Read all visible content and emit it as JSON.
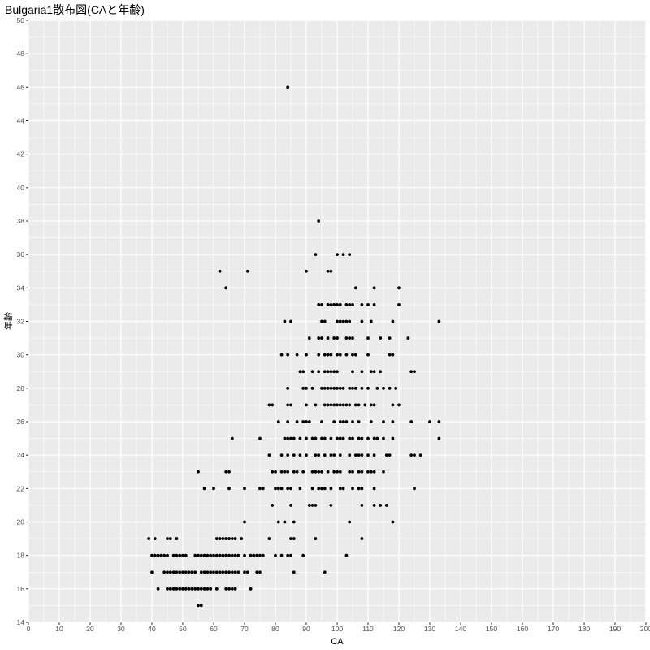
{
  "chart_data": {
    "type": "scatter",
    "title": "Bulgaria1散布図(CAと年齢)",
    "xlabel": "CA",
    "ylabel": "年齢",
    "xlim": [
      0,
      200
    ],
    "ylim": [
      14,
      50
    ],
    "xticks": [
      0,
      10,
      20,
      30,
      40,
      50,
      60,
      70,
      80,
      90,
      100,
      110,
      120,
      130,
      140,
      150,
      160,
      170,
      180,
      190,
      200
    ],
    "yticks": [
      14,
      16,
      18,
      20,
      22,
      24,
      26,
      28,
      30,
      32,
      34,
      36,
      38,
      40,
      42,
      44,
      46,
      48,
      50
    ],
    "grid": true,
    "background": "#ebebeb",
    "grid_color": "#ffffff",
    "point_color": "#000000",
    "points": [
      [
        55,
        15
      ],
      [
        56,
        15
      ],
      [
        42,
        16
      ],
      [
        45,
        16
      ],
      [
        46,
        16
      ],
      [
        47,
        16
      ],
      [
        48,
        16
      ],
      [
        49,
        16
      ],
      [
        50,
        16
      ],
      [
        51,
        16
      ],
      [
        52,
        16
      ],
      [
        53,
        16
      ],
      [
        54,
        16
      ],
      [
        55,
        16
      ],
      [
        56,
        16
      ],
      [
        57,
        16
      ],
      [
        58,
        16
      ],
      [
        59,
        16
      ],
      [
        61,
        16
      ],
      [
        64,
        16
      ],
      [
        65,
        16
      ],
      [
        66,
        16
      ],
      [
        67,
        16
      ],
      [
        72,
        16
      ],
      [
        40,
        17
      ],
      [
        44,
        17
      ],
      [
        45,
        17
      ],
      [
        46,
        17
      ],
      [
        47,
        17
      ],
      [
        48,
        17
      ],
      [
        49,
        17
      ],
      [
        50,
        17
      ],
      [
        51,
        17
      ],
      [
        52,
        17
      ],
      [
        53,
        17
      ],
      [
        54,
        17
      ],
      [
        56,
        17
      ],
      [
        57,
        17
      ],
      [
        58,
        17
      ],
      [
        59,
        17
      ],
      [
        60,
        17
      ],
      [
        61,
        17
      ],
      [
        62,
        17
      ],
      [
        63,
        17
      ],
      [
        64,
        17
      ],
      [
        65,
        17
      ],
      [
        66,
        17
      ],
      [
        67,
        17
      ],
      [
        68,
        17
      ],
      [
        70,
        17
      ],
      [
        71,
        17
      ],
      [
        74,
        17
      ],
      [
        75,
        17
      ],
      [
        86,
        17
      ],
      [
        96,
        17
      ],
      [
        40,
        18
      ],
      [
        41,
        18
      ],
      [
        42,
        18
      ],
      [
        43,
        18
      ],
      [
        44,
        18
      ],
      [
        45,
        18
      ],
      [
        47,
        18
      ],
      [
        48,
        18
      ],
      [
        49,
        18
      ],
      [
        50,
        18
      ],
      [
        51,
        18
      ],
      [
        54,
        18
      ],
      [
        55,
        18
      ],
      [
        56,
        18
      ],
      [
        57,
        18
      ],
      [
        58,
        18
      ],
      [
        59,
        18
      ],
      [
        60,
        18
      ],
      [
        61,
        18
      ],
      [
        62,
        18
      ],
      [
        63,
        18
      ],
      [
        64,
        18
      ],
      [
        65,
        18
      ],
      [
        66,
        18
      ],
      [
        67,
        18
      ],
      [
        68,
        18
      ],
      [
        70,
        18
      ],
      [
        72,
        18
      ],
      [
        73,
        18
      ],
      [
        74,
        18
      ],
      [
        75,
        18
      ],
      [
        76,
        18
      ],
      [
        80,
        18
      ],
      [
        82,
        18
      ],
      [
        84,
        18
      ],
      [
        85,
        18
      ],
      [
        89,
        18
      ],
      [
        103,
        18
      ],
      [
        39,
        19
      ],
      [
        41,
        19
      ],
      [
        45,
        19
      ],
      [
        46,
        19
      ],
      [
        48,
        19
      ],
      [
        61,
        19
      ],
      [
        62,
        19
      ],
      [
        63,
        19
      ],
      [
        64,
        19
      ],
      [
        65,
        19
      ],
      [
        66,
        19
      ],
      [
        67,
        19
      ],
      [
        69,
        19
      ],
      [
        78,
        19
      ],
      [
        85,
        19
      ],
      [
        86,
        19
      ],
      [
        93,
        19
      ],
      [
        108,
        19
      ],
      [
        70,
        20
      ],
      [
        81,
        20
      ],
      [
        83,
        20
      ],
      [
        86,
        20
      ],
      [
        104,
        20
      ],
      [
        118,
        20
      ],
      [
        79,
        21
      ],
      [
        85,
        21
      ],
      [
        91,
        21
      ],
      [
        92,
        21
      ],
      [
        93,
        21
      ],
      [
        98,
        21
      ],
      [
        108,
        21
      ],
      [
        112,
        21
      ],
      [
        114,
        21
      ],
      [
        116,
        21
      ],
      [
        57,
        22
      ],
      [
        60,
        22
      ],
      [
        65,
        22
      ],
      [
        70,
        22
      ],
      [
        75,
        22
      ],
      [
        76,
        22
      ],
      [
        80,
        22
      ],
      [
        81,
        22
      ],
      [
        82,
        22
      ],
      [
        84,
        22
      ],
      [
        85,
        22
      ],
      [
        88,
        22
      ],
      [
        92,
        22
      ],
      [
        94,
        22
      ],
      [
        95,
        22
      ],
      [
        96,
        22
      ],
      [
        98,
        22
      ],
      [
        101,
        22
      ],
      [
        102,
        22
      ],
      [
        105,
        22
      ],
      [
        107,
        22
      ],
      [
        108,
        22
      ],
      [
        112,
        22
      ],
      [
        125,
        22
      ],
      [
        55,
        23
      ],
      [
        64,
        23
      ],
      [
        65,
        23
      ],
      [
        79,
        23
      ],
      [
        80,
        23
      ],
      [
        82,
        23
      ],
      [
        83,
        23
      ],
      [
        84,
        23
      ],
      [
        86,
        23
      ],
      [
        87,
        23
      ],
      [
        89,
        23
      ],
      [
        92,
        23
      ],
      [
        93,
        23
      ],
      [
        94,
        23
      ],
      [
        95,
        23
      ],
      [
        97,
        23
      ],
      [
        99,
        23
      ],
      [
        100,
        23
      ],
      [
        101,
        23
      ],
      [
        104,
        23
      ],
      [
        105,
        23
      ],
      [
        107,
        23
      ],
      [
        108,
        23
      ],
      [
        110,
        23
      ],
      [
        111,
        23
      ],
      [
        112,
        23
      ],
      [
        115,
        23
      ],
      [
        78,
        24
      ],
      [
        82,
        24
      ],
      [
        84,
        24
      ],
      [
        86,
        24
      ],
      [
        88,
        24
      ],
      [
        90,
        24
      ],
      [
        93,
        24
      ],
      [
        94,
        24
      ],
      [
        96,
        24
      ],
      [
        98,
        24
      ],
      [
        99,
        24
      ],
      [
        101,
        24
      ],
      [
        104,
        24
      ],
      [
        106,
        24
      ],
      [
        107,
        24
      ],
      [
        108,
        24
      ],
      [
        110,
        24
      ],
      [
        112,
        24
      ],
      [
        116,
        24
      ],
      [
        117,
        24
      ],
      [
        124,
        24
      ],
      [
        125,
        24
      ],
      [
        127,
        24
      ],
      [
        66,
        25
      ],
      [
        75,
        25
      ],
      [
        83,
        25
      ],
      [
        84,
        25
      ],
      [
        85,
        25
      ],
      [
        86,
        25
      ],
      [
        88,
        25
      ],
      [
        90,
        25
      ],
      [
        92,
        25
      ],
      [
        93,
        25
      ],
      [
        95,
        25
      ],
      [
        96,
        25
      ],
      [
        98,
        25
      ],
      [
        100,
        25
      ],
      [
        101,
        25
      ],
      [
        102,
        25
      ],
      [
        104,
        25
      ],
      [
        105,
        25
      ],
      [
        107,
        25
      ],
      [
        108,
        25
      ],
      [
        110,
        25
      ],
      [
        112,
        25
      ],
      [
        113,
        25
      ],
      [
        115,
        25
      ],
      [
        118,
        25
      ],
      [
        133,
        25
      ],
      [
        81,
        26
      ],
      [
        84,
        26
      ],
      [
        87,
        26
      ],
      [
        89,
        26
      ],
      [
        90,
        26
      ],
      [
        91,
        26
      ],
      [
        95,
        26
      ],
      [
        99,
        26
      ],
      [
        101,
        26
      ],
      [
        102,
        26
      ],
      [
        103,
        26
      ],
      [
        105,
        26
      ],
      [
        107,
        26
      ],
      [
        111,
        26
      ],
      [
        115,
        26
      ],
      [
        118,
        26
      ],
      [
        124,
        26
      ],
      [
        130,
        26
      ],
      [
        133,
        26
      ],
      [
        78,
        27
      ],
      [
        79,
        27
      ],
      [
        84,
        27
      ],
      [
        85,
        27
      ],
      [
        90,
        27
      ],
      [
        93,
        27
      ],
      [
        96,
        27
      ],
      [
        97,
        27
      ],
      [
        98,
        27
      ],
      [
        99,
        27
      ],
      [
        100,
        27
      ],
      [
        101,
        27
      ],
      [
        102,
        27
      ],
      [
        103,
        27
      ],
      [
        104,
        27
      ],
      [
        106,
        27
      ],
      [
        107,
        27
      ],
      [
        109,
        27
      ],
      [
        111,
        27
      ],
      [
        112,
        27
      ],
      [
        118,
        27
      ],
      [
        120,
        27
      ],
      [
        84,
        28
      ],
      [
        89,
        28
      ],
      [
        90,
        28
      ],
      [
        92,
        28
      ],
      [
        95,
        28
      ],
      [
        96,
        28
      ],
      [
        97,
        28
      ],
      [
        98,
        28
      ],
      [
        99,
        28
      ],
      [
        100,
        28
      ],
      [
        101,
        28
      ],
      [
        102,
        28
      ],
      [
        104,
        28
      ],
      [
        105,
        28
      ],
      [
        106,
        28
      ],
      [
        108,
        28
      ],
      [
        110,
        28
      ],
      [
        113,
        28
      ],
      [
        115,
        28
      ],
      [
        117,
        28
      ],
      [
        119,
        28
      ],
      [
        88,
        29
      ],
      [
        89,
        29
      ],
      [
        92,
        29
      ],
      [
        94,
        29
      ],
      [
        96,
        29
      ],
      [
        97,
        29
      ],
      [
        98,
        29
      ],
      [
        99,
        29
      ],
      [
        100,
        29
      ],
      [
        105,
        29
      ],
      [
        108,
        29
      ],
      [
        111,
        29
      ],
      [
        112,
        29
      ],
      [
        114,
        29
      ],
      [
        124,
        29
      ],
      [
        125,
        29
      ],
      [
        82,
        30
      ],
      [
        84,
        30
      ],
      [
        87,
        30
      ],
      [
        90,
        30
      ],
      [
        94,
        30
      ],
      [
        96,
        30
      ],
      [
        97,
        30
      ],
      [
        98,
        30
      ],
      [
        100,
        30
      ],
      [
        101,
        30
      ],
      [
        103,
        30
      ],
      [
        105,
        30
      ],
      [
        106,
        30
      ],
      [
        110,
        30
      ],
      [
        117,
        30
      ],
      [
        118,
        30
      ],
      [
        91,
        31
      ],
      [
        94,
        31
      ],
      [
        95,
        31
      ],
      [
        97,
        31
      ],
      [
        99,
        31
      ],
      [
        100,
        31
      ],
      [
        103,
        31
      ],
      [
        104,
        31
      ],
      [
        105,
        31
      ],
      [
        110,
        31
      ],
      [
        114,
        31
      ],
      [
        117,
        31
      ],
      [
        123,
        31
      ],
      [
        83,
        32
      ],
      [
        85,
        32
      ],
      [
        95,
        32
      ],
      [
        96,
        32
      ],
      [
        100,
        32
      ],
      [
        101,
        32
      ],
      [
        102,
        32
      ],
      [
        103,
        32
      ],
      [
        104,
        32
      ],
      [
        108,
        32
      ],
      [
        111,
        32
      ],
      [
        118,
        32
      ],
      [
        133,
        32
      ],
      [
        94,
        33
      ],
      [
        95,
        33
      ],
      [
        97,
        33
      ],
      [
        98,
        33
      ],
      [
        99,
        33
      ],
      [
        100,
        33
      ],
      [
        101,
        33
      ],
      [
        103,
        33
      ],
      [
        104,
        33
      ],
      [
        105,
        33
      ],
      [
        108,
        33
      ],
      [
        110,
        33
      ],
      [
        112,
        33
      ],
      [
        120,
        33
      ],
      [
        64,
        34
      ],
      [
        106,
        34
      ],
      [
        112,
        34
      ],
      [
        120,
        34
      ],
      [
        62,
        35
      ],
      [
        71,
        35
      ],
      [
        90,
        35
      ],
      [
        97,
        35
      ],
      [
        98,
        35
      ],
      [
        93,
        36
      ],
      [
        100,
        36
      ],
      [
        102,
        36
      ],
      [
        104,
        36
      ],
      [
        94,
        38
      ],
      [
        84,
        46
      ]
    ]
  }
}
